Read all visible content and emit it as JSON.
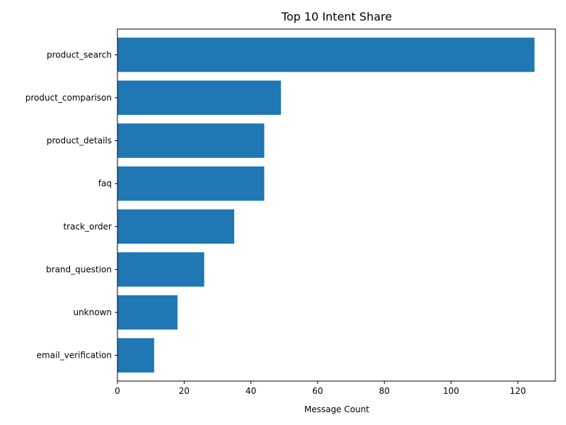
{
  "chart_data": {
    "type": "bar",
    "orientation": "horizontal",
    "title": "Top 10 Intent Share",
    "xlabel": "Message Count",
    "ylabel": "",
    "categories": [
      "product_search",
      "product_comparison",
      "product_details",
      "faq",
      "track_order",
      "brand_question",
      "unknown",
      "email_verification"
    ],
    "values": [
      125,
      49,
      44,
      44,
      35,
      26,
      18,
      11
    ],
    "xlim": [
      0,
      131.25
    ],
    "xticks": [
      0,
      20,
      40,
      60,
      80,
      100,
      120
    ],
    "bar_color": "#1f77b4",
    "grid": false
  }
}
